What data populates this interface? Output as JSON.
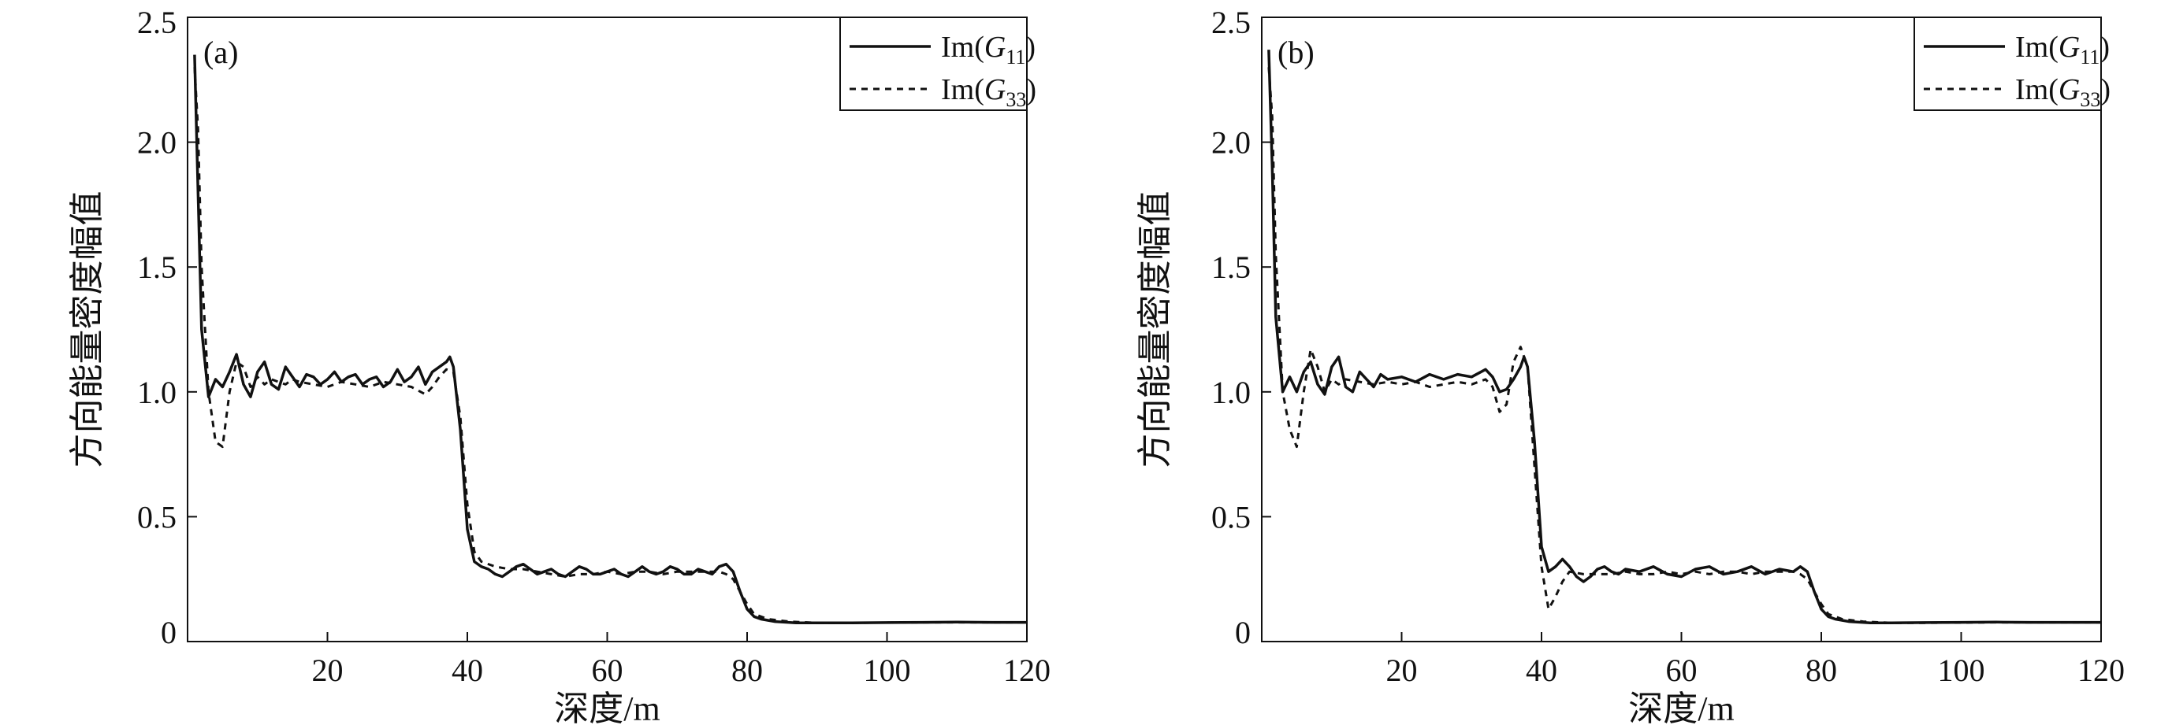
{
  "chart_data": [
    {
      "type": "line",
      "panel_label": "(a)",
      "xlabel": "深度/m",
      "ylabel": "方向能量密度幅值",
      "xlim": [
        0,
        120
      ],
      "ylim": [
        0,
        2.5
      ],
      "xticks": [
        20,
        40,
        60,
        80,
        100,
        120
      ],
      "xtick_labels": [
        "20",
        "40",
        "60",
        "80",
        "100",
        "120"
      ],
      "yticks": [
        0,
        0.5,
        1.0,
        1.5,
        2.0,
        2.5
      ],
      "ytick_labels": [
        "0",
        "0.5",
        "1.0",
        "1.5",
        "2.0",
        "2.5"
      ],
      "legend_position": "top-right",
      "series": [
        {
          "name": "Im(G11)",
          "legend": {
            "prefix": "Im",
            "open": "(",
            "symbol": "G",
            "sub": "11",
            "close": ")"
          },
          "style": "solid",
          "x": [
            1.0,
            1.5,
            2.0,
            3.0,
            4.0,
            5.0,
            6.0,
            7.0,
            8.0,
            9.0,
            10.0,
            11.0,
            12.0,
            13.0,
            14.0,
            15.0,
            16.0,
            17.0,
            18.0,
            19.0,
            20.0,
            21.0,
            22.0,
            23.0,
            24.0,
            25.0,
            26.0,
            27.0,
            28.0,
            29.0,
            30.0,
            31.0,
            32.0,
            33.0,
            34.0,
            35.0,
            36.0,
            37.0,
            37.5,
            38.0,
            39.0,
            40.0,
            41.0,
            42.0,
            43.0,
            44.0,
            45.0,
            46.0,
            47.0,
            48.0,
            49.0,
            50.0,
            51.0,
            52.0,
            53.0,
            54.0,
            55.0,
            56.0,
            57.0,
            58.0,
            59.0,
            60.0,
            61.0,
            62.0,
            63.0,
            64.0,
            65.0,
            66.0,
            67.0,
            68.0,
            69.0,
            70.0,
            71.0,
            72.0,
            73.0,
            74.0,
            75.0,
            76.0,
            77.0,
            78.0,
            79.0,
            80.0,
            81.0,
            82.0,
            84.0,
            87.0,
            90.0,
            95.0,
            100.0,
            105.0,
            110.0,
            115.0,
            120.0
          ],
          "y": [
            2.35,
            1.8,
            1.25,
            0.98,
            1.05,
            1.02,
            1.08,
            1.15,
            1.03,
            0.98,
            1.08,
            1.12,
            1.03,
            1.01,
            1.1,
            1.06,
            1.02,
            1.07,
            1.06,
            1.03,
            1.05,
            1.08,
            1.04,
            1.06,
            1.07,
            1.03,
            1.05,
            1.06,
            1.02,
            1.04,
            1.09,
            1.04,
            1.06,
            1.1,
            1.03,
            1.08,
            1.1,
            1.12,
            1.14,
            1.1,
            0.85,
            0.45,
            0.32,
            0.3,
            0.29,
            0.27,
            0.26,
            0.28,
            0.3,
            0.31,
            0.29,
            0.27,
            0.28,
            0.29,
            0.27,
            0.26,
            0.28,
            0.3,
            0.29,
            0.27,
            0.27,
            0.28,
            0.29,
            0.27,
            0.26,
            0.28,
            0.3,
            0.28,
            0.27,
            0.28,
            0.3,
            0.29,
            0.27,
            0.27,
            0.29,
            0.28,
            0.27,
            0.3,
            0.31,
            0.28,
            0.2,
            0.13,
            0.1,
            0.09,
            0.08,
            0.075,
            0.075,
            0.075,
            0.076,
            0.077,
            0.078,
            0.077,
            0.077
          ]
        },
        {
          "name": "Im(G33)",
          "legend": {
            "prefix": "Im",
            "open": "(",
            "symbol": "G",
            "sub": "33",
            "close": ")"
          },
          "style": "dashed",
          "x": [
            1.0,
            1.5,
            2.0,
            3.0,
            4.0,
            5.0,
            6.0,
            7.0,
            8.0,
            9.0,
            10.0,
            11.0,
            12.0,
            13.0,
            14.0,
            15.0,
            16.0,
            18.0,
            20.0,
            22.0,
            24.0,
            26.0,
            28.0,
            30.0,
            32.0,
            34.0,
            35.0,
            36.0,
            37.0,
            38.0,
            39.0,
            40.0,
            41.0,
            42.0,
            44.0,
            46.0,
            48.0,
            50.0,
            52.0,
            54.0,
            56.0,
            58.0,
            60.0,
            62.0,
            64.0,
            66.0,
            68.0,
            70.0,
            72.0,
            74.0,
            76.0,
            77.0,
            78.0,
            79.0,
            80.0,
            81.0,
            83.0,
            86.0,
            90.0,
            95.0,
            100.0,
            105.0,
            110.0,
            115.0,
            120.0
          ],
          "y": [
            2.3,
            2.05,
            1.5,
            1.0,
            0.8,
            0.78,
            1.0,
            1.12,
            1.1,
            1.02,
            1.06,
            1.03,
            1.05,
            1.04,
            1.03,
            1.05,
            1.04,
            1.03,
            1.02,
            1.04,
            1.03,
            1.02,
            1.04,
            1.03,
            1.02,
            0.99,
            1.02,
            1.06,
            1.09,
            1.08,
            0.9,
            0.55,
            0.36,
            0.32,
            0.3,
            0.29,
            0.29,
            0.28,
            0.27,
            0.26,
            0.27,
            0.27,
            0.28,
            0.27,
            0.28,
            0.28,
            0.27,
            0.28,
            0.28,
            0.28,
            0.28,
            0.27,
            0.25,
            0.2,
            0.15,
            0.11,
            0.09,
            0.08,
            0.075,
            0.075,
            0.076,
            0.077,
            0.077,
            0.077,
            0.077
          ]
        }
      ]
    },
    {
      "type": "line",
      "panel_label": "(b)",
      "xlabel": "深度/m",
      "ylabel": "方向能量密度幅值",
      "xlim": [
        0,
        120
      ],
      "ylim": [
        0,
        2.5
      ],
      "xticks": [
        20,
        40,
        60,
        80,
        100,
        120
      ],
      "xtick_labels": [
        "20",
        "40",
        "60",
        "80",
        "100",
        "120"
      ],
      "yticks": [
        0,
        0.5,
        1.0,
        1.5,
        2.0,
        2.5
      ],
      "ytick_labels": [
        "0",
        "0.5",
        "1.0",
        "1.5",
        "2.0",
        "2.5"
      ],
      "legend_position": "top-right",
      "series": [
        {
          "name": "Im(G11)",
          "legend": {
            "prefix": "Im",
            "open": "(",
            "symbol": "G",
            "sub": "11",
            "close": ")"
          },
          "style": "solid",
          "x": [
            1.0,
            1.5,
            2.0,
            3.0,
            4.0,
            5.0,
            6.0,
            7.0,
            8.0,
            9.0,
            10.0,
            11.0,
            12.0,
            13.0,
            14.0,
            15.0,
            16.0,
            17.0,
            18.0,
            20.0,
            22.0,
            24.0,
            26.0,
            28.0,
            30.0,
            32.0,
            33.0,
            34.0,
            35.0,
            36.0,
            37.0,
            37.5,
            38.0,
            39.0,
            40.0,
            41.0,
            42.0,
            43.0,
            44.0,
            45.0,
            46.0,
            47.0,
            48.0,
            49.0,
            50.0,
            51.0,
            52.0,
            54.0,
            56.0,
            58.0,
            60.0,
            62.0,
            64.0,
            66.0,
            68.0,
            70.0,
            72.0,
            74.0,
            76.0,
            77.0,
            78.0,
            79.0,
            80.0,
            81.0,
            82.0,
            84.0,
            87.0,
            90.0,
            95.0,
            100.0,
            105.0,
            110.0,
            115.0,
            120.0
          ],
          "y": [
            2.37,
            1.9,
            1.3,
            1.0,
            1.06,
            1.0,
            1.08,
            1.12,
            1.03,
            0.99,
            1.1,
            1.14,
            1.02,
            1.0,
            1.08,
            1.05,
            1.02,
            1.07,
            1.05,
            1.06,
            1.04,
            1.07,
            1.05,
            1.07,
            1.06,
            1.09,
            1.06,
            1.0,
            1.01,
            1.05,
            1.1,
            1.14,
            1.1,
            0.8,
            0.38,
            0.28,
            0.3,
            0.33,
            0.3,
            0.26,
            0.24,
            0.26,
            0.29,
            0.3,
            0.28,
            0.27,
            0.29,
            0.28,
            0.3,
            0.27,
            0.26,
            0.29,
            0.3,
            0.27,
            0.28,
            0.3,
            0.27,
            0.29,
            0.28,
            0.3,
            0.28,
            0.2,
            0.13,
            0.1,
            0.09,
            0.08,
            0.075,
            0.075,
            0.076,
            0.077,
            0.078,
            0.077,
            0.077,
            0.077
          ]
        },
        {
          "name": "Im(G33)",
          "legend": {
            "prefix": "Im",
            "open": "(",
            "symbol": "G",
            "sub": "33",
            "close": ")"
          },
          "style": "dashed",
          "x": [
            1.0,
            1.5,
            2.0,
            3.0,
            4.0,
            5.0,
            6.0,
            7.0,
            8.0,
            9.0,
            10.0,
            11.0,
            12.0,
            14.0,
            16.0,
            18.0,
            20.0,
            22.0,
            24.0,
            26.0,
            28.0,
            30.0,
            32.0,
            33.0,
            34.0,
            35.0,
            36.0,
            37.0,
            38.0,
            39.0,
            40.0,
            41.0,
            42.0,
            43.0,
            44.0,
            46.0,
            48.0,
            50.0,
            52.0,
            54.0,
            56.0,
            58.0,
            60.0,
            62.0,
            64.0,
            66.0,
            68.0,
            70.0,
            72.0,
            74.0,
            76.0,
            77.0,
            78.0,
            79.0,
            80.0,
            81.0,
            83.0,
            86.0,
            90.0,
            95.0,
            100.0,
            105.0,
            110.0,
            115.0,
            120.0
          ],
          "y": [
            2.3,
            2.1,
            1.55,
            1.0,
            0.85,
            0.78,
            1.0,
            1.17,
            1.1,
            1.0,
            1.05,
            1.03,
            1.05,
            1.04,
            1.03,
            1.04,
            1.03,
            1.04,
            1.02,
            1.03,
            1.04,
            1.03,
            1.05,
            1.02,
            0.92,
            0.95,
            1.12,
            1.18,
            1.1,
            0.7,
            0.3,
            0.13,
            0.18,
            0.24,
            0.28,
            0.27,
            0.27,
            0.27,
            0.28,
            0.27,
            0.27,
            0.28,
            0.27,
            0.28,
            0.27,
            0.28,
            0.28,
            0.27,
            0.28,
            0.28,
            0.28,
            0.27,
            0.25,
            0.2,
            0.15,
            0.11,
            0.09,
            0.08,
            0.075,
            0.075,
            0.076,
            0.077,
            0.077,
            0.077,
            0.077
          ]
        }
      ]
    }
  ]
}
